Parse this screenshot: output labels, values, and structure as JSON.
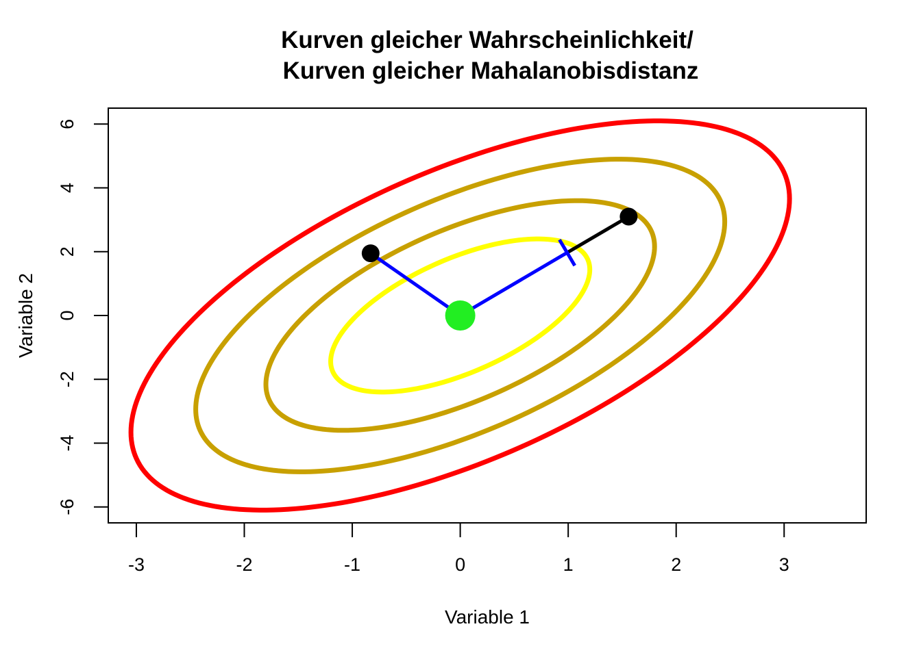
{
  "chart_data": {
    "type": "line",
    "title_lines": [
      "Kurven gleicher Wahrscheinlichkeit/",
      "Kurven gleicher Mahalanobisdistanz"
    ],
    "xlabel": "Variable 1",
    "ylabel": "Variable 2",
    "xlim": [
      -3.26,
      3.76
    ],
    "ylim": [
      -6.5,
      6.5
    ],
    "xticks": [
      {
        "value": -3,
        "label": "-3"
      },
      {
        "value": -2,
        "label": "-2"
      },
      {
        "value": -1,
        "label": "-1"
      },
      {
        "value": 0,
        "label": "0"
      },
      {
        "value": 1,
        "label": "1"
      },
      {
        "value": 2,
        "label": "2"
      },
      {
        "value": 3,
        "label": "3"
      }
    ],
    "yticks": [
      {
        "value": -6,
        "label": "-6"
      },
      {
        "value": -4,
        "label": "-4"
      },
      {
        "value": -2,
        "label": "-2"
      },
      {
        "value": 0,
        "label": "0"
      },
      {
        "value": 2,
        "label": "2"
      },
      {
        "value": 4,
        "label": "4"
      },
      {
        "value": 6,
        "label": "6"
      }
    ],
    "center": {
      "x": 0,
      "y": 0,
      "color": "#22ee22"
    },
    "covariance": {
      "var_x": 1,
      "var_y": 4,
      "cov_xy": 1.2
    },
    "contours": [
      {
        "distance": 1.2,
        "color": "#ffff00"
      },
      {
        "distance": 1.8,
        "color": "#c8a000"
      },
      {
        "distance": 2.45,
        "color": "#c8a000"
      },
      {
        "distance": 3.05,
        "color": "#ff0000"
      }
    ],
    "points": [
      {
        "x": -0.83,
        "y": 1.95,
        "color": "#000000"
      },
      {
        "x": 1.56,
        "y": 3.1,
        "color": "#000000"
      }
    ],
    "segments": [
      {
        "from": [
          0,
          0
        ],
        "to": [
          -0.83,
          1.95
        ],
        "color": "#0000ff"
      },
      {
        "from": [
          0,
          0
        ],
        "to": [
          0.99,
          1.97
        ],
        "color": "#0000ff"
      },
      {
        "from": [
          0.99,
          1.97
        ],
        "to": [
          1.56,
          3.1
        ],
        "color": "#000000"
      }
    ],
    "tick_mark": {
      "x": 0.99,
      "y": 1.97,
      "color": "#0000ff"
    },
    "grid": false,
    "legend": "none"
  }
}
